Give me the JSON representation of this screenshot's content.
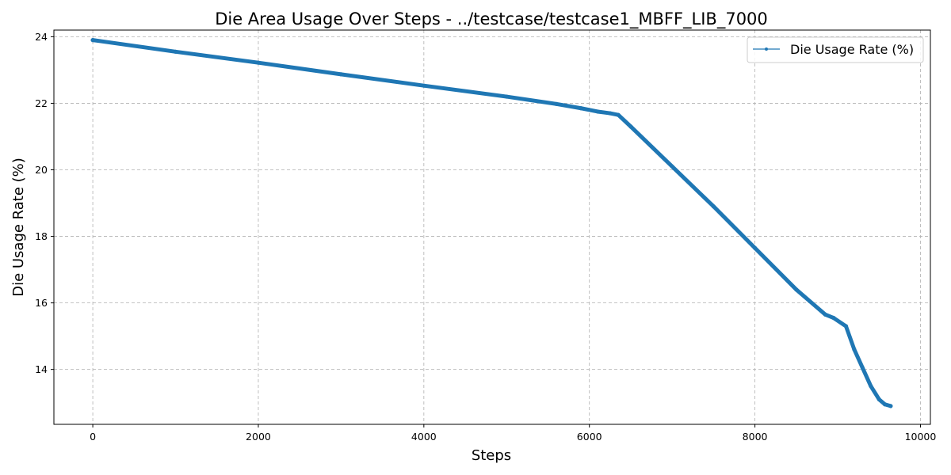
{
  "chart_data": {
    "type": "line",
    "title": "Die Area Usage Over Steps - ../testcase/testcase1_MBFF_LIB_7000",
    "xlabel": "Steps",
    "ylabel": "Die Usage Rate (%)",
    "xlim": [
      -470,
      10120
    ],
    "ylim": [
      12.35,
      24.2
    ],
    "xticks": [
      0,
      2000,
      4000,
      6000,
      8000,
      10000
    ],
    "yticks": [
      14,
      16,
      18,
      20,
      22,
      24
    ],
    "grid": true,
    "legend_position": "top-right",
    "series": [
      {
        "name": "Die Usage Rate (%)",
        "color": "#1f77b4",
        "x": [
          0,
          1000,
          2000,
          3000,
          4000,
          5000,
          5600,
          5900,
          6100,
          6250,
          6350,
          6500,
          7000,
          7500,
          8000,
          8500,
          8850,
          8950,
          9100,
          9200,
          9300,
          9400,
          9500,
          9570,
          9640
        ],
        "y": [
          23.9,
          23.55,
          23.22,
          22.87,
          22.53,
          22.2,
          21.98,
          21.85,
          21.75,
          21.7,
          21.65,
          21.3,
          20.1,
          18.9,
          17.65,
          16.4,
          15.65,
          15.55,
          15.3,
          14.6,
          14.05,
          13.5,
          13.1,
          12.95,
          12.9
        ]
      }
    ]
  }
}
